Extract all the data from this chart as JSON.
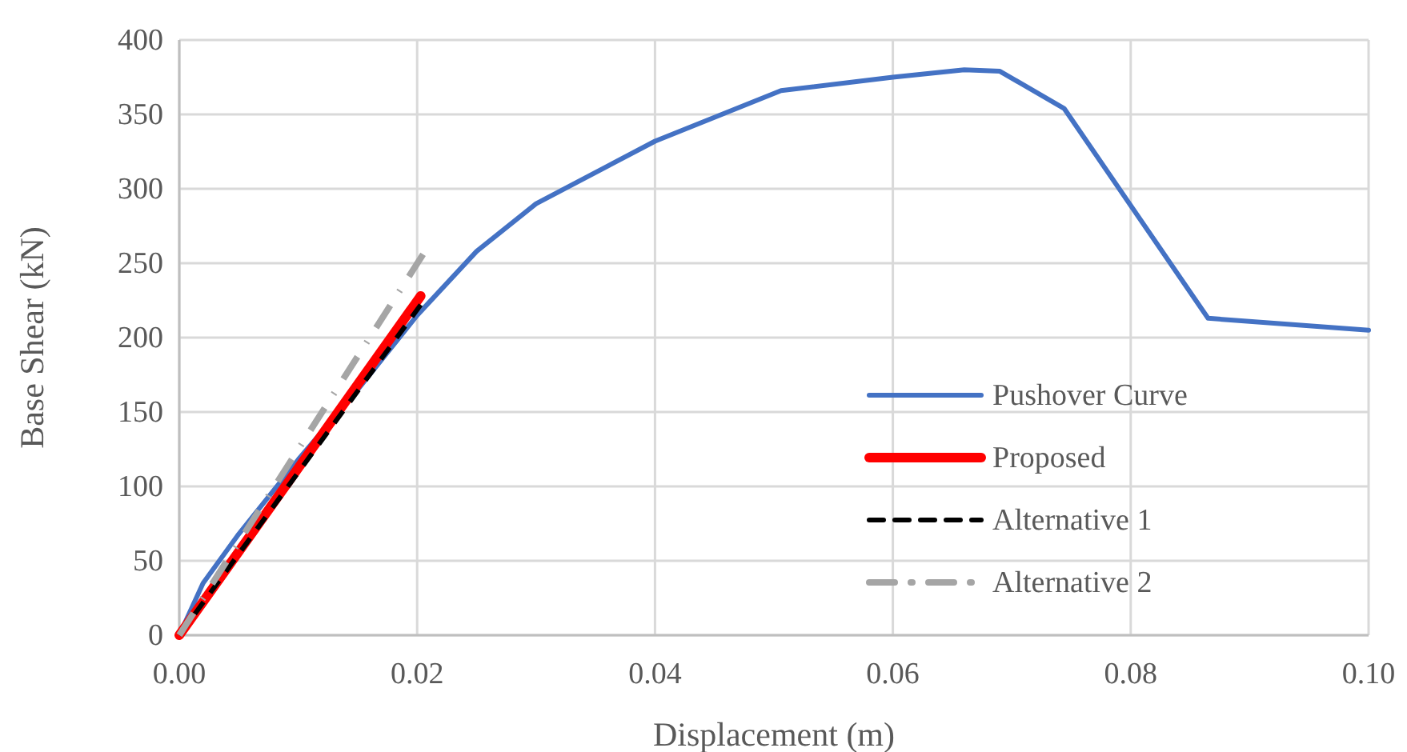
{
  "chart_data": {
    "type": "line",
    "xlabel": "Displacement (m)",
    "ylabel": "Base Shear (kN)",
    "xlim": [
      0,
      0.1
    ],
    "xticks": [
      {
        "value": 0,
        "label": "0.00"
      },
      {
        "value": 0.02,
        "label": "0.02"
      },
      {
        "value": 0.04,
        "label": "0.04"
      },
      {
        "value": 0.06,
        "label": "0.06"
      },
      {
        "value": 0.08,
        "label": "0.08"
      },
      {
        "value": 0.1,
        "label": "0.10"
      }
    ],
    "ylim": [
      0,
      400
    ],
    "yticks": [
      0,
      50,
      100,
      150,
      200,
      250,
      300,
      350,
      400
    ],
    "grid": true,
    "legend": "bottom right",
    "marker": "none",
    "series": [
      {
        "name": "Pushover Curve",
        "color": "#4472c4",
        "line_style": "solid",
        "x": [
          0,
          0.002,
          0.005,
          0.01,
          0.015,
          0.02,
          0.025,
          0.03,
          0.04,
          0.0506,
          0.06,
          0.066,
          0.069,
          0.0744,
          0.0865,
          0.1
        ],
        "values": [
          0,
          35,
          68,
          118,
          165,
          215,
          258,
          290,
          332,
          366,
          375,
          380,
          379,
          354,
          213,
          205
        ]
      },
      {
        "name": "Proposed",
        "color": "#ff0000",
        "line_style": "solid",
        "x": [
          0,
          0.0203
        ],
        "values": [
          0,
          228
        ]
      },
      {
        "name": "Alternative 1",
        "color": "#000000",
        "line_style": "dashed",
        "x": [
          0,
          0.0203
        ],
        "values": [
          0,
          222
        ]
      },
      {
        "name": "Alternative 2",
        "color": "#a5a5a5",
        "line_style": "dashed",
        "x": [
          0,
          0.0205
        ],
        "values": [
          0,
          256
        ]
      }
    ]
  }
}
